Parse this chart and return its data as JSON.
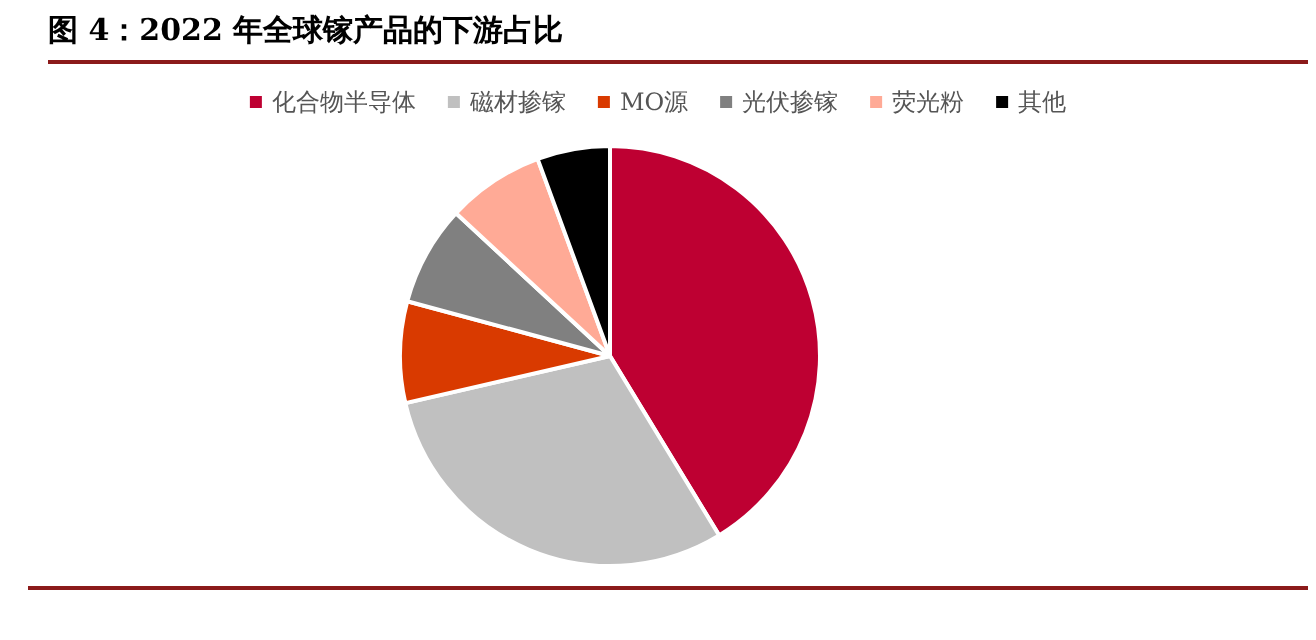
{
  "chart_data": {
    "type": "pie",
    "title": "图 4：2022 年全球镓产品的下游占比",
    "categories": [
      "化合物半导体",
      "磁材掺镓",
      "MO源",
      "光伏掺镓",
      "荧光粉",
      "其他"
    ],
    "values": [
      41.3,
      30.1,
      7.8,
      7.7,
      7.5,
      5.6
    ],
    "colors": [
      "#be0032",
      "#c0c0c0",
      "#d93a00",
      "#808080",
      "#ffaa96",
      "#000000"
    ],
    "legend": "top"
  }
}
